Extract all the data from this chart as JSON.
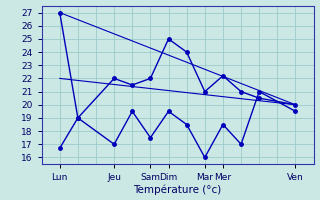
{
  "xlabel": "Température (°c)",
  "background_color": "#cce8e4",
  "grid_color": "#99ccca",
  "line_color": "#0000bb",
  "ylim": [
    15.5,
    27.5
  ],
  "yticks": [
    16,
    17,
    18,
    19,
    20,
    21,
    22,
    23,
    24,
    25,
    26,
    27
  ],
  "x_tick_major": [
    0,
    3,
    5,
    6,
    8,
    9,
    13
  ],
  "x_tick_labels": [
    "Lun",
    "Jeu",
    "Sam",
    "Dim",
    "Mar",
    "Mer",
    "Ven"
  ],
  "xlim": [
    -0.5,
    13.5
  ],
  "series_max": {
    "x": [
      0,
      3,
      5,
      6,
      8,
      9,
      13
    ],
    "y": [
      27,
      22.2,
      23.2,
      25,
      24,
      22,
      20
    ]
  },
  "series_min": {
    "x": [
      0,
      3,
      5,
      6,
      8,
      9,
      13
    ],
    "y": [
      16.7,
      19,
      17,
      19.5,
      18.5,
      20.5,
      19.5
    ]
  },
  "trend1": {
    "x": [
      0,
      13
    ],
    "y": [
      27,
      20
    ]
  },
  "trend2": {
    "x": [
      0,
      13
    ],
    "y": [
      22,
      20
    ]
  },
  "series_max2": {
    "x": [
      0,
      1,
      3,
      4,
      5,
      6,
      7,
      8,
      9,
      10,
      11,
      13
    ],
    "y": [
      27,
      19,
      22,
      21.5,
      22,
      25,
      24,
      21,
      22.2,
      21,
      20.5,
      20
    ]
  },
  "series_min2": {
    "x": [
      0,
      1,
      3,
      4,
      5,
      6,
      7,
      8,
      9,
      10,
      11,
      13
    ],
    "y": [
      16.7,
      19,
      17,
      19.5,
      17.5,
      19.5,
      18.5,
      16,
      18.5,
      17,
      21,
      19.5
    ]
  }
}
